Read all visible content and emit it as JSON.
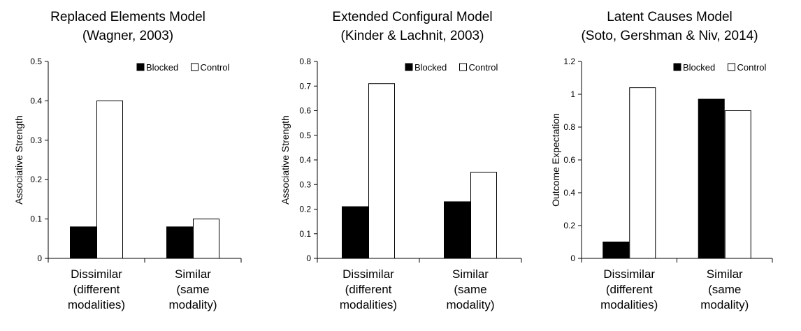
{
  "chart_data": [
    {
      "type": "bar",
      "title": [
        "Replaced Elements Model",
        "(Wagner, 2003)"
      ],
      "ylabel": "Associative Strength",
      "xlabel": "",
      "ylim": [
        0,
        0.5
      ],
      "yticks": [
        0,
        0.1,
        0.2,
        0.3,
        0.4,
        0.5
      ],
      "ytick_labels": [
        "0",
        "0.1",
        "0.2",
        "0.3",
        "0.4",
        "0.5"
      ],
      "categories": [
        [
          "Dissimilar",
          "(different",
          "modalities)"
        ],
        [
          "Similar",
          "(same",
          "modality)"
        ]
      ],
      "series": [
        {
          "name": "Blocked",
          "values": [
            0.08,
            0.08
          ],
          "color": "#000000"
        },
        {
          "name": "Control",
          "values": [
            0.4,
            0.1
          ],
          "color": "#ffffff"
        }
      ],
      "legend": "top-right",
      "grid": false
    },
    {
      "type": "bar",
      "title": [
        "Extended Configural Model",
        "(Kinder & Lachnit, 2003)"
      ],
      "ylabel": "Associative Strength",
      "xlabel": "",
      "ylim": [
        0,
        0.8
      ],
      "yticks": [
        0,
        0.1,
        0.2,
        0.3,
        0.4,
        0.5,
        0.6,
        0.7,
        0.8
      ],
      "ytick_labels": [
        "0",
        "0.1",
        "0.2",
        "0.3",
        "0.4",
        "0.5",
        "0.6",
        "0.7",
        "0.8"
      ],
      "categories": [
        [
          "Dissimilar",
          "(different",
          "modalities)"
        ],
        [
          "Similar",
          "(same",
          "modality)"
        ]
      ],
      "series": [
        {
          "name": "Blocked",
          "values": [
            0.21,
            0.23
          ],
          "color": "#000000"
        },
        {
          "name": "Control",
          "values": [
            0.71,
            0.35
          ],
          "color": "#ffffff"
        }
      ],
      "legend": "top-right",
      "grid": false
    },
    {
      "type": "bar",
      "title": [
        "Latent Causes Model",
        "(Soto, Gershman & Niv, 2014)"
      ],
      "ylabel": "Outcome Expectation",
      "xlabel": "",
      "ylim": [
        0,
        1.2
      ],
      "yticks": [
        0,
        0.2,
        0.4,
        0.6,
        0.8,
        1.0,
        1.2
      ],
      "ytick_labels": [
        "0",
        "0.2",
        "0.4",
        "0.6",
        "0.8",
        "1",
        "1.2"
      ],
      "categories": [
        [
          "Dissimilar",
          "(different",
          "modalities)"
        ],
        [
          "Similar",
          "(same",
          "modality)"
        ]
      ],
      "series": [
        {
          "name": "Blocked",
          "values": [
            0.1,
            0.97
          ],
          "color": "#000000"
        },
        {
          "name": "Control",
          "values": [
            1.04,
            0.9
          ],
          "color": "#ffffff"
        }
      ],
      "legend": "top-right",
      "grid": false
    }
  ]
}
